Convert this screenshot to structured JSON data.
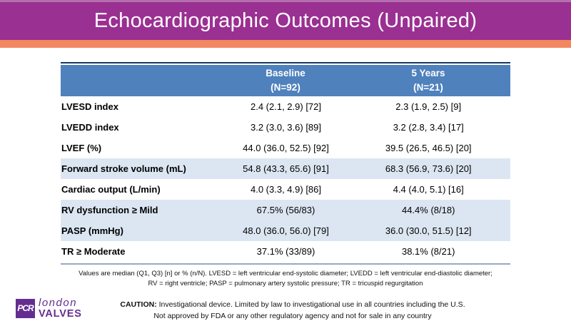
{
  "slide": {
    "title": "Echocardiographic Outcomes (Unpaired)"
  },
  "colors": {
    "header_purple": "#9a3092",
    "top_strip_purple": "#b66fae",
    "accent_orange": "#f28761",
    "table_header_blue": "#4f81bd",
    "row_band_blue": "#dce6f2",
    "table_top_border_navy": "#17375e",
    "table_bottom_border_blue_gray": "#95a9c6",
    "logo_purple": "#662d91"
  },
  "table": {
    "columns": [
      {
        "label": "",
        "sublabel": ""
      },
      {
        "label": "Baseline",
        "sublabel": "(N=92)"
      },
      {
        "label": "5 Years",
        "sublabel": "(N=21)"
      }
    ],
    "rows": [
      {
        "label": "LVESD index",
        "baseline": "2.4 (2.1, 2.9) [72]",
        "five_years": "2.3 (1.9, 2.5) [9]",
        "shaded": false
      },
      {
        "label": "LVEDD index",
        "baseline": "3.2 (3.0, 3.6) [89]",
        "five_years": "3.2 (2.8, 3.4) [17]",
        "shaded": false
      },
      {
        "label": "LVEF (%)",
        "baseline": "44.0 (36.0, 52.5) [92]",
        "five_years": "39.5 (26.5, 46.5) [20]",
        "shaded": false
      },
      {
        "label": "Forward stroke volume (mL)",
        "baseline": "54.8 (43.3, 65.6) [91]",
        "five_years": "68.3 (56.9, 73.6) [20]",
        "shaded": true
      },
      {
        "label": "Cardiac output (L/min)",
        "baseline": "4.0 (3.3, 4.9) [86]",
        "five_years": "4.4 (4.0, 5.1) [16]",
        "shaded": false
      },
      {
        "label": "RV dysfunction ≥ Mild",
        "baseline": "67.5% (56/83)",
        "five_years": "44.4% (8/18)",
        "shaded": true
      },
      {
        "label": "PASP (mmHg)",
        "baseline": "48.0 (36.0, 56.0) [79]",
        "five_years": "36.0 (30.0, 51.5) [12]",
        "shaded": true
      },
      {
        "label": "TR ≥ Moderate",
        "baseline": "37.1% (33/89)",
        "five_years": "38.1% (8/21)",
        "shaded": false
      }
    ]
  },
  "footnote": {
    "line1": "Values are median (Q1, Q3) [n] or % (n/N). LVESD = left ventricular end-systolic diameter; LVEDD = left ventricular end-diastolic diameter;",
    "line2": "RV = right ventricle; PASP = pulmonary artery systolic pressure; TR = tricuspid regurgitation"
  },
  "logo": {
    "acronym": "PCR",
    "line1": "london",
    "line2": "VALVES"
  },
  "caution": {
    "label": "CAUTION:",
    "line1": " Investigational device. Limited by law to investigational use in all countries including the U.S.",
    "line2": "Not approved by FDA or any other regulatory agency and not for sale in any country"
  }
}
